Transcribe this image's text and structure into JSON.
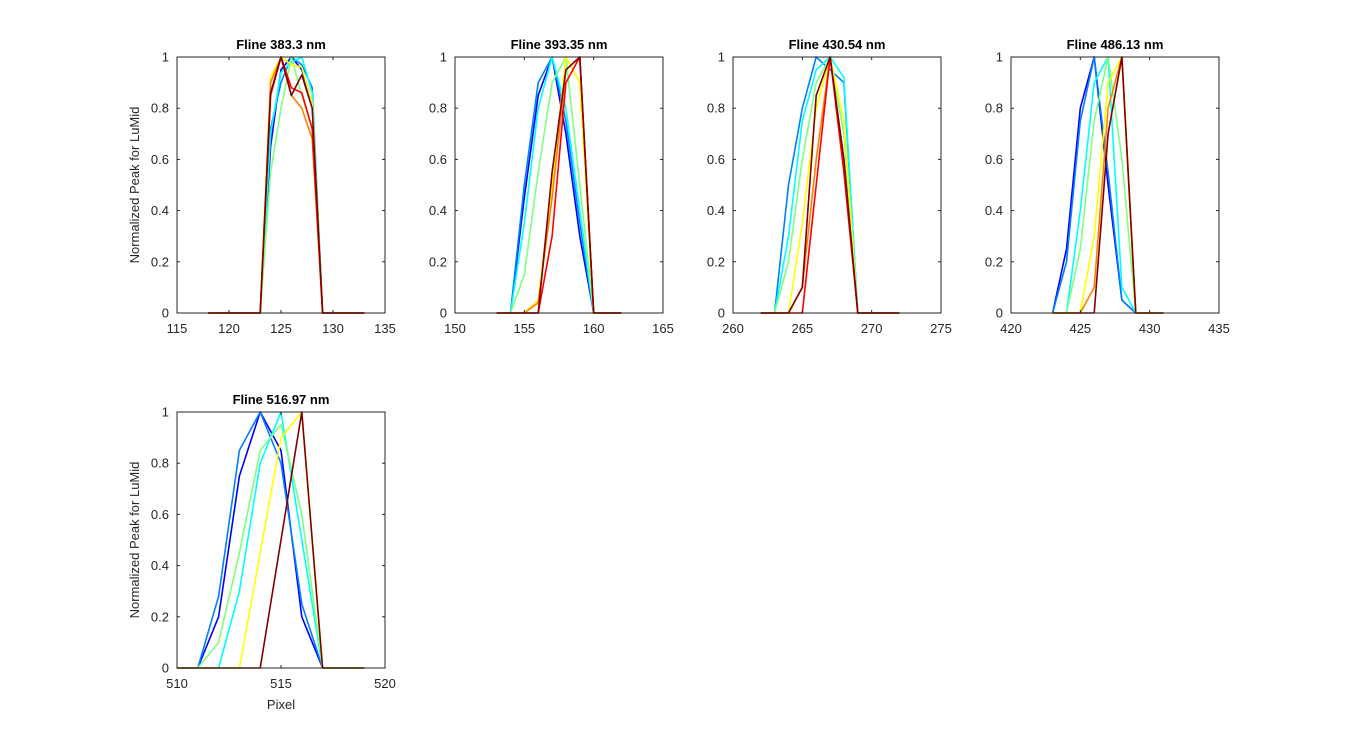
{
  "figure": {
    "background": "#ffffff",
    "axis_color": "#262626"
  },
  "colormap": [
    "#00008f",
    "#0000ff",
    "#0080ff",
    "#00ffff",
    "#80ff80",
    "#ffff00",
    "#ff8000",
    "#ff0000",
    "#800000"
  ],
  "chart_data": [
    {
      "type": "line",
      "title": "Fline 383.3 nm",
      "xlabel": "",
      "ylabel": "Normalized Peak for LuMid",
      "xlim": [
        115,
        135
      ],
      "ylim": [
        0,
        1
      ],
      "xticks": [
        "115",
        "120",
        "125",
        "130",
        "135"
      ],
      "yticks": [
        "0",
        "0.2",
        "0.4",
        "0.6",
        "0.8",
        "1"
      ],
      "grid": false,
      "x": [
        118,
        119,
        120,
        121,
        122,
        123,
        124,
        125,
        126,
        127,
        128,
        129,
        130,
        131,
        132,
        133
      ],
      "series": [
        {
          "color": "#0000ff",
          "values": [
            0,
            0,
            0,
            0,
            0,
            0,
            0.65,
            0.95,
            1,
            0.95,
            0.82,
            0,
            0,
            0,
            0,
            0
          ]
        },
        {
          "color": "#0080ff",
          "values": [
            0,
            0,
            0,
            0,
            0,
            0,
            0.72,
            0.9,
            1,
            0.97,
            0.88,
            0,
            0,
            0,
            0,
            0
          ]
        },
        {
          "color": "#00ffff",
          "values": [
            0,
            0,
            0,
            0,
            0,
            0,
            0.7,
            0.94,
            0.98,
            1,
            0.86,
            0,
            0,
            0,
            0,
            0
          ]
        },
        {
          "color": "#80ff80",
          "values": [
            0,
            0,
            0,
            0,
            0,
            0,
            0.55,
            0.8,
            1,
            0.85,
            0.72,
            0,
            0,
            0,
            0,
            0
          ]
        },
        {
          "color": "#ffff00",
          "values": [
            0,
            0,
            0,
            0,
            0,
            0,
            0.92,
            1,
            0.97,
            0.96,
            0.82,
            0,
            0,
            0,
            0,
            0
          ]
        },
        {
          "color": "#ff8000",
          "values": [
            0,
            0,
            0,
            0,
            0,
            0,
            0.9,
            1,
            0.85,
            0.8,
            0.68,
            0,
            0,
            0,
            0,
            0
          ]
        },
        {
          "color": "#ff0000",
          "values": [
            0,
            0,
            0,
            0,
            0,
            0,
            0.85,
            1,
            0.88,
            0.86,
            0.72,
            0,
            0,
            0,
            0,
            0
          ]
        },
        {
          "color": "#800000",
          "values": [
            0,
            0,
            0,
            0,
            0,
            0,
            0.86,
            1,
            0.85,
            0.93,
            0.8,
            0,
            0,
            0,
            0,
            0
          ]
        }
      ]
    },
    {
      "type": "line",
      "title": "Fline 393.35 nm",
      "xlabel": "",
      "ylabel": "",
      "xlim": [
        150,
        165
      ],
      "ylim": [
        0,
        1
      ],
      "xticks": [
        "150",
        "155",
        "160",
        "165"
      ],
      "yticks": [
        "0",
        "0.2",
        "0.4",
        "0.6",
        "0.8",
        "1"
      ],
      "grid": false,
      "x": [
        153,
        154,
        155,
        156,
        157,
        158,
        159,
        160,
        161,
        162
      ],
      "series": [
        {
          "color": "#0000ff",
          "values": [
            0,
            0,
            0.45,
            0.85,
            1,
            0.7,
            0.3,
            0,
            0,
            0
          ]
        },
        {
          "color": "#0080ff",
          "values": [
            0,
            0,
            0.5,
            0.9,
            1,
            0.75,
            0.35,
            0,
            0,
            0
          ]
        },
        {
          "color": "#00ffff",
          "values": [
            0,
            0,
            0.35,
            0.8,
            1,
            0.8,
            0.4,
            0,
            0,
            0
          ]
        },
        {
          "color": "#80ff80",
          "values": [
            0,
            0,
            0.15,
            0.55,
            0.9,
            1,
            0.5,
            0,
            0,
            0
          ]
        },
        {
          "color": "#ffff00",
          "values": [
            0,
            0,
            0,
            0.05,
            0.5,
            1,
            0.9,
            0,
            0,
            0
          ]
        },
        {
          "color": "#ff8000",
          "values": [
            0,
            0,
            0,
            0.04,
            0.45,
            0.95,
            1,
            0,
            0,
            0
          ]
        },
        {
          "color": "#ff0000",
          "values": [
            0,
            0,
            0,
            0,
            0.3,
            0.9,
            1,
            0,
            0,
            0
          ]
        },
        {
          "color": "#800000",
          "values": [
            0,
            0,
            0,
            0,
            0.55,
            0.95,
            1,
            0,
            0,
            0
          ]
        }
      ]
    },
    {
      "type": "line",
      "title": "Fline 430.54 nm",
      "xlabel": "",
      "ylabel": "",
      "xlim": [
        260,
        275
      ],
      "ylim": [
        0,
        1
      ],
      "xticks": [
        "260",
        "265",
        "270",
        "275"
      ],
      "yticks": [
        "0",
        "0.2",
        "0.4",
        "0.6",
        "0.8",
        "1"
      ],
      "grid": false,
      "x": [
        262,
        263,
        264,
        265,
        266,
        267,
        268,
        269,
        270,
        271,
        272
      ],
      "series": [
        {
          "color": "#0080ff",
          "values": [
            0,
            0,
            0.5,
            0.8,
            1,
            0.95,
            0.9,
            0,
            0,
            0,
            0
          ]
        },
        {
          "color": "#00ffff",
          "values": [
            0,
            0,
            0.3,
            0.75,
            0.95,
            1,
            0.92,
            0,
            0,
            0,
            0
          ]
        },
        {
          "color": "#80ff80",
          "values": [
            0,
            0,
            0.2,
            0.6,
            0.9,
            1,
            0.7,
            0,
            0,
            0,
            0
          ]
        },
        {
          "color": "#ffff00",
          "values": [
            0,
            0,
            0,
            0.35,
            0.8,
            1,
            0.75,
            0,
            0,
            0,
            0
          ]
        },
        {
          "color": "#ff8000",
          "values": [
            0,
            0,
            0,
            0.1,
            0.6,
            1,
            0.6,
            0,
            0,
            0,
            0
          ]
        },
        {
          "color": "#ff0000",
          "values": [
            0,
            0,
            0,
            0,
            0.5,
            1,
            0.55,
            0,
            0,
            0,
            0
          ]
        },
        {
          "color": "#800000",
          "values": [
            0,
            0,
            0,
            0.1,
            0.85,
            1,
            0.6,
            0,
            0,
            0,
            0
          ]
        }
      ]
    },
    {
      "type": "line",
      "title": "Fline 486.13 nm",
      "xlabel": "",
      "ylabel": "",
      "xlim": [
        420,
        435
      ],
      "ylim": [
        0,
        1
      ],
      "xticks": [
        "420",
        "425",
        "430",
        "435"
      ],
      "yticks": [
        "0",
        "0.2",
        "0.4",
        "0.6",
        "0.8",
        "1"
      ],
      "grid": false,
      "x": [
        423,
        424,
        425,
        426,
        427,
        428,
        429,
        430,
        431
      ],
      "series": [
        {
          "color": "#0000ff",
          "values": [
            0,
            0.25,
            0.8,
            1,
            0.5,
            0.05,
            0,
            0,
            0
          ]
        },
        {
          "color": "#0080ff",
          "values": [
            0,
            0.2,
            0.75,
            1,
            0.55,
            0.05,
            0,
            0,
            0
          ]
        },
        {
          "color": "#00ffff",
          "values": [
            0,
            0,
            0.4,
            0.9,
            1,
            0.1,
            0,
            0,
            0
          ]
        },
        {
          "color": "#80ff80",
          "values": [
            0,
            0,
            0.25,
            0.75,
            1,
            0.6,
            0,
            0,
            0
          ]
        },
        {
          "color": "#ffff00",
          "values": [
            0,
            0,
            0,
            0.3,
            0.9,
            1,
            0,
            0,
            0
          ]
        },
        {
          "color": "#ff8000",
          "values": [
            0,
            0,
            0,
            0.1,
            0.8,
            1,
            0,
            0,
            0
          ]
        },
        {
          "color": "#800000",
          "values": [
            0,
            0,
            0,
            0,
            0.7,
            1,
            0,
            0,
            0
          ]
        }
      ]
    },
    {
      "type": "line",
      "title": "Fline 516.97 nm",
      "xlabel": "Pixel",
      "ylabel": "Normalized Peak for LuMid",
      "xlim": [
        510,
        520
      ],
      "ylim": [
        0,
        1
      ],
      "xticks": [
        "510",
        "515",
        "520"
      ],
      "yticks": [
        "0",
        "0.2",
        "0.4",
        "0.6",
        "0.8",
        "1"
      ],
      "grid": false,
      "x": [
        510,
        511,
        512,
        513,
        514,
        515,
        516,
        517,
        518,
        519
      ],
      "series": [
        {
          "color": "#0000ff",
          "values": [
            0,
            0,
            0.2,
            0.75,
            1,
            0.85,
            0.2,
            0,
            0,
            0
          ]
        },
        {
          "color": "#0080ff",
          "values": [
            0,
            0,
            0.28,
            0.85,
            1,
            0.8,
            0.25,
            0,
            0,
            0
          ]
        },
        {
          "color": "#00ffff",
          "values": [
            0,
            0,
            0,
            0.3,
            0.8,
            1,
            0.5,
            0,
            0,
            0
          ]
        },
        {
          "color": "#80ff80",
          "values": [
            0,
            0,
            0.1,
            0.45,
            0.85,
            0.95,
            0.6,
            0,
            0,
            0
          ]
        },
        {
          "color": "#ffff00",
          "values": [
            0,
            0,
            0,
            0,
            0.45,
            0.9,
            1,
            0,
            0,
            0
          ]
        },
        {
          "color": "#800000",
          "values": [
            0,
            0,
            0,
            0,
            0,
            0.5,
            1,
            0,
            0,
            0
          ]
        }
      ]
    }
  ]
}
